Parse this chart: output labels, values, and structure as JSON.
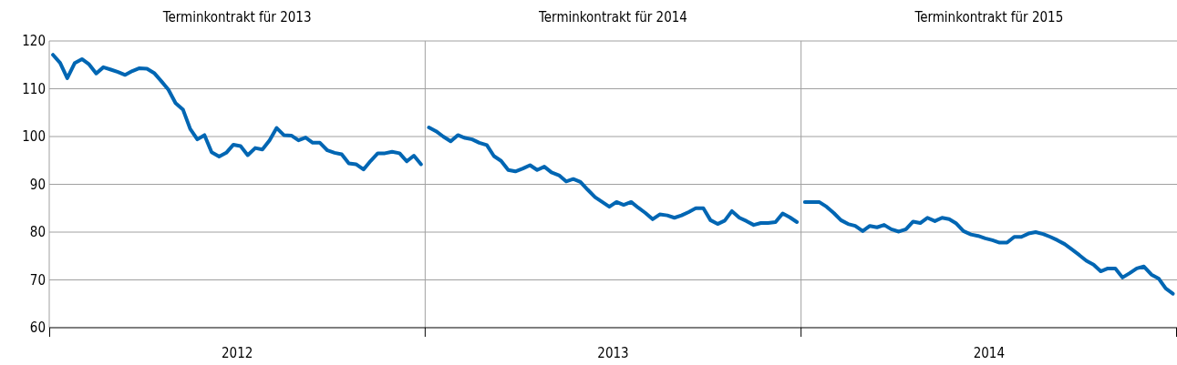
{
  "chart_data": {
    "type": "line",
    "xlim": [
      2012,
      2015
    ],
    "xticks": [
      {
        "value": 2012,
        "label": null
      },
      {
        "value": 2012.5,
        "label": "2012"
      },
      {
        "value": 2013,
        "label": null
      },
      {
        "value": 2013.5,
        "label": "2013"
      },
      {
        "value": 2014,
        "label": null
      },
      {
        "value": 2014.5,
        "label": "2014"
      },
      {
        "value": 2015,
        "label": null
      }
    ],
    "ylim": [
      60,
      120
    ],
    "yticks": [
      60,
      70,
      80,
      90,
      100,
      110,
      120
    ],
    "grid": "y",
    "annotations": [
      "Terminkontrakt für 2013",
      "Terminkontrakt für 2014",
      "Terminkontrakt für 2015"
    ],
    "ref_lines": [
      {
        "axis": "x",
        "value": 2013,
        "color": "#a0a0a0"
      },
      {
        "axis": "x",
        "value": 2014,
        "color": "#a0a0a0"
      }
    ],
    "series": [
      {
        "color": "#0066b3",
        "x": [
          2012.01,
          2012.029,
          2012.048,
          2012.068,
          2012.087,
          2012.106,
          2012.125,
          2012.144,
          2012.164,
          2012.183,
          2012.202,
          2012.221,
          2012.24,
          2012.26,
          2012.279,
          2012.298,
          2012.317,
          2012.336,
          2012.356,
          2012.375,
          2012.394,
          2012.413,
          2012.432,
          2012.452,
          2012.471,
          2012.49,
          2012.509,
          2012.528,
          2012.548,
          2012.567,
          2012.586,
          2012.605,
          2012.624,
          2012.644,
          2012.663,
          2012.682,
          2012.701,
          2012.72,
          2012.74,
          2012.759,
          2012.778,
          2012.797,
          2012.816,
          2012.836,
          2012.855,
          2012.874,
          2012.893,
          2012.912,
          2012.932,
          2012.951,
          2012.97,
          2012.989
        ],
        "values": [
          117.1,
          115.4,
          112.2,
          115.4,
          116.2,
          115.1,
          113.2,
          114.5,
          114,
          113.5,
          112.9,
          113.7,
          114.3,
          114.2,
          113.3,
          111.6,
          109.8,
          107,
          105.6,
          101.6,
          99.4,
          100.3,
          96.7,
          95.8,
          96.6,
          98.3,
          98,
          96.1,
          97.6,
          97.3,
          99.2,
          101.8,
          100.3,
          100.2,
          99.2,
          99.8,
          98.7,
          98.7,
          97.1,
          96.6,
          96.3,
          94.4,
          94.2,
          93.1,
          94.9,
          96.5,
          96.5,
          96.8,
          96.5,
          94.8,
          96,
          94.2
        ]
      },
      {
        "color": "#0066b3",
        "x": [
          2013.01,
          2013.029,
          2013.048,
          2013.068,
          2013.087,
          2013.106,
          2013.125,
          2013.144,
          2013.164,
          2013.183,
          2013.202,
          2013.221,
          2013.24,
          2013.26,
          2013.279,
          2013.298,
          2013.317,
          2013.336,
          2013.356,
          2013.375,
          2013.394,
          2013.413,
          2013.432,
          2013.452,
          2013.471,
          2013.49,
          2013.509,
          2013.528,
          2013.548,
          2013.567,
          2013.586,
          2013.605,
          2013.624,
          2013.644,
          2013.663,
          2013.682,
          2013.701,
          2013.72,
          2013.74,
          2013.759,
          2013.778,
          2013.797,
          2013.816,
          2013.836,
          2013.855,
          2013.874,
          2013.893,
          2013.912,
          2013.932,
          2013.951,
          2013.97,
          2013.989
        ],
        "values": [
          101.9,
          101.1,
          100,
          99,
          100.3,
          99.7,
          99.4,
          98.7,
          98.2,
          95.9,
          94.9,
          93,
          92.7,
          93.3,
          94,
          93,
          93.7,
          92.5,
          91.9,
          90.6,
          91.1,
          90.5,
          88.9,
          87.3,
          86.3,
          85.3,
          86.3,
          85.7,
          86.3,
          85.1,
          84,
          82.7,
          83.7,
          83.5,
          83,
          83.5,
          84.2,
          85,
          85,
          82.5,
          81.7,
          82.4,
          84.4,
          83,
          82.3,
          81.5,
          81.9,
          81.9,
          82.1,
          83.9,
          83.1,
          82.1
        ]
      },
      {
        "color": "#0066b3",
        "x": [
          2014.01,
          2014.029,
          2014.048,
          2014.068,
          2014.087,
          2014.106,
          2014.125,
          2014.144,
          2014.164,
          2014.183,
          2014.202,
          2014.221,
          2014.24,
          2014.26,
          2014.279,
          2014.298,
          2014.317,
          2014.336,
          2014.356,
          2014.375,
          2014.394,
          2014.413,
          2014.432,
          2014.452,
          2014.471,
          2014.49,
          2014.509,
          2014.528,
          2014.548,
          2014.567,
          2014.586,
          2014.605,
          2014.624,
          2014.644,
          2014.663,
          2014.682,
          2014.701,
          2014.72,
          2014.74,
          2014.759,
          2014.778,
          2014.797,
          2014.816,
          2014.836,
          2014.855,
          2014.874,
          2014.893,
          2014.912,
          2014.932,
          2014.951,
          2014.97,
          2014.989
        ],
        "values": [
          86.3,
          86.3,
          86.3,
          85.3,
          84,
          82.5,
          81.7,
          81.3,
          80.2,
          81.3,
          81,
          81.5,
          80.6,
          80.1,
          80.6,
          82.2,
          81.9,
          83,
          82.3,
          83,
          82.7,
          81.8,
          80.2,
          79.5,
          79.2,
          78.7,
          78.3,
          77.8,
          77.8,
          79,
          79,
          79.7,
          80,
          79.6,
          79,
          78.3,
          77.5,
          76.4,
          75.2,
          74,
          73.2,
          71.8,
          72.4,
          72.4,
          70.5,
          71.4,
          72.4,
          72.8,
          71.1,
          70.3,
          68.2,
          67.1
        ]
      }
    ]
  }
}
